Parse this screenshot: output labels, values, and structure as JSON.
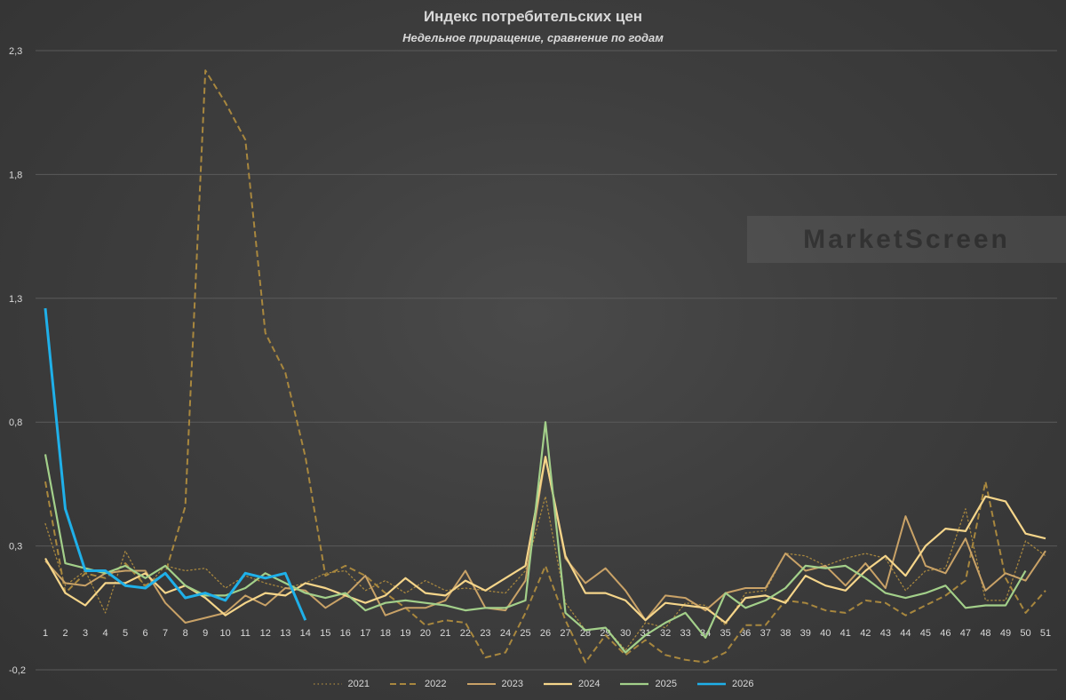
{
  "chart_data": {
    "type": "line",
    "title": "Индекс потребительских цен",
    "subtitle": "Недельное приращение, сравнение по годам",
    "xlabel": "",
    "ylabel": "",
    "ylim": [
      -0.2,
      2.3
    ],
    "yticks": [
      "-0,2",
      "0,3",
      "0,8",
      "1,3",
      "1,8",
      "2,3"
    ],
    "ytick_values": [
      -0.2,
      0.3,
      0.8,
      1.3,
      1.8,
      2.3
    ],
    "grid": true,
    "legend_position": "bottom",
    "x": [
      1,
      2,
      3,
      4,
      5,
      6,
      7,
      8,
      9,
      10,
      11,
      12,
      13,
      14,
      15,
      16,
      17,
      18,
      19,
      20,
      21,
      22,
      23,
      24,
      25,
      26,
      27,
      28,
      29,
      30,
      31,
      32,
      33,
      34,
      35,
      36,
      37,
      38,
      39,
      40,
      41,
      42,
      43,
      44,
      45,
      46,
      47,
      48,
      49,
      50,
      51
    ],
    "series": [
      {
        "name": "2021",
        "color": "#a8873e",
        "dash": "dot",
        "width": 1.3,
        "values": [
          0.39,
          0.14,
          0.2,
          0.03,
          0.28,
          0.13,
          0.22,
          0.2,
          0.21,
          0.13,
          0.18,
          0.15,
          0.13,
          0.15,
          0.19,
          0.2,
          0.12,
          0.16,
          0.11,
          0.16,
          0.12,
          0.13,
          0.12,
          0.11,
          0.2,
          0.5,
          0.07,
          -0.04,
          -0.03,
          -0.12,
          -0.01,
          -0.03,
          0.07,
          0.06,
          -0.02,
          0.11,
          0.12,
          0.27,
          0.26,
          0.22,
          0.25,
          0.27,
          0.25,
          0.12,
          0.2,
          0.21,
          0.45,
          0.08,
          0.08,
          0.32,
          0.26
        ]
      },
      {
        "name": "2022",
        "color": "#a8873e",
        "dash": "dash",
        "width": 2,
        "values": [
          0.56,
          0.11,
          0.19,
          0.17,
          0.23,
          0.14,
          0.19,
          0.46,
          2.22,
          2.09,
          1.94,
          1.16,
          1.0,
          0.66,
          0.18,
          0.22,
          0.18,
          0.11,
          0.05,
          -0.02,
          0.0,
          -0.01,
          -0.15,
          -0.13,
          0.03,
          0.22,
          0.0,
          -0.17,
          -0.06,
          -0.14,
          -0.08,
          -0.14,
          -0.16,
          -0.17,
          -0.13,
          -0.02,
          -0.02,
          0.08,
          0.07,
          0.04,
          0.03,
          0.08,
          0.07,
          0.02,
          0.06,
          0.1,
          0.16,
          0.56,
          0.17,
          0.03,
          0.12
        ]
      },
      {
        "name": "2023",
        "color": "#c9a267",
        "dash": "solid",
        "width": 2,
        "values": [
          0.24,
          0.15,
          0.14,
          0.19,
          0.2,
          0.2,
          0.07,
          -0.01,
          0.01,
          0.03,
          0.1,
          0.06,
          0.13,
          0.12,
          0.05,
          0.1,
          0.18,
          0.02,
          0.05,
          0.05,
          0.08,
          0.2,
          0.05,
          0.04,
          0.16,
          0.66,
          0.25,
          0.15,
          0.21,
          0.12,
          0.0,
          0.1,
          0.09,
          0.04,
          0.11,
          0.13,
          0.13,
          0.27,
          0.2,
          0.22,
          0.14,
          0.23,
          0.13,
          0.42,
          0.22,
          0.19,
          0.33,
          0.12,
          0.19,
          0.16,
          0.28
        ]
      },
      {
        "name": "2024",
        "color": "#f5d58a",
        "dash": "solid",
        "width": 2.2,
        "values": [
          0.25,
          0.11,
          0.06,
          0.15,
          0.15,
          0.19,
          0.11,
          0.14,
          0.09,
          0.02,
          0.07,
          0.11,
          0.1,
          0.15,
          0.13,
          0.1,
          0.07,
          0.1,
          0.17,
          0.11,
          0.1,
          0.16,
          0.12,
          0.17,
          0.22,
          0.66,
          0.26,
          0.11,
          0.11,
          0.08,
          0.0,
          0.07,
          0.06,
          0.05,
          -0.01,
          0.09,
          0.1,
          0.07,
          0.18,
          0.14,
          0.12,
          0.2,
          0.26,
          0.18,
          0.3,
          0.37,
          0.36,
          0.5,
          0.48,
          0.35,
          0.33
        ]
      },
      {
        "name": "2025",
        "color": "#a3d08a",
        "dash": "solid",
        "width": 2.2,
        "values": [
          0.67,
          0.23,
          0.21,
          0.19,
          0.22,
          0.17,
          0.22,
          0.14,
          0.1,
          0.1,
          0.13,
          0.19,
          0.15,
          0.11,
          0.09,
          0.11,
          0.04,
          0.07,
          0.08,
          0.07,
          0.06,
          0.04,
          0.05,
          0.05,
          0.08,
          0.8,
          0.03,
          -0.04,
          -0.03,
          -0.13,
          -0.06,
          -0.01,
          0.03,
          -0.07,
          0.11,
          0.05,
          0.08,
          0.13,
          0.22,
          0.21,
          0.22,
          0.17,
          0.11,
          0.09,
          0.11,
          0.14,
          0.05,
          0.06,
          0.06,
          0.2,
          null
        ]
      },
      {
        "name": "2026",
        "color": "#1fb0e9",
        "dash": "solid",
        "width": 3,
        "values": [
          1.26,
          0.45,
          0.2,
          0.2,
          0.14,
          0.13,
          0.19,
          0.09,
          0.11,
          0.08,
          0.19,
          0.17,
          0.19,
          0.0,
          null,
          null,
          null,
          null,
          null,
          null,
          null,
          null,
          null,
          null,
          null,
          null,
          null,
          null,
          null,
          null,
          null,
          null,
          null,
          null,
          null,
          null,
          null,
          null,
          null,
          null,
          null,
          null,
          null,
          null,
          null,
          null,
          null,
          null,
          null,
          null,
          null
        ]
      }
    ]
  },
  "watermark": "MarketScreen"
}
